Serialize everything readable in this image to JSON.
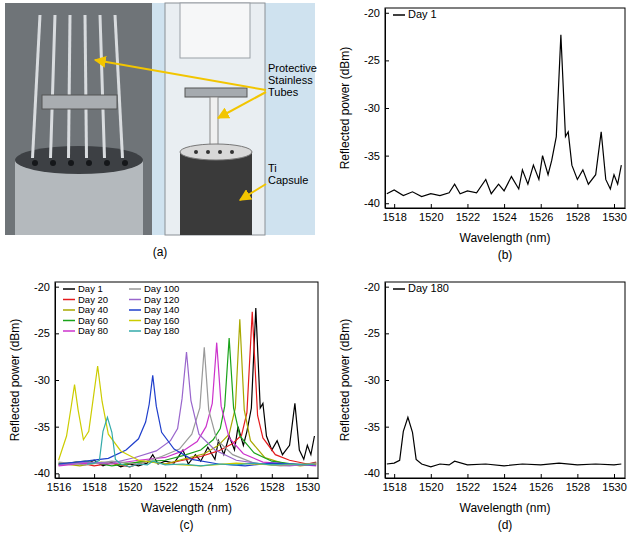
{
  "panel_a": {
    "caption": "(a)",
    "labels": [
      "Protective Stainless Tubes",
      "Ti Capsule"
    ]
  },
  "chart_data": [
    {
      "type": "line",
      "caption": "(b)",
      "x_label": "Wavelength (nm)",
      "y_label": "Reflected power (dBm)",
      "xlim": [
        1517.5,
        1530.6
      ],
      "ylim": [
        -40.5,
        -19.5
      ],
      "xticks": [
        1518,
        1520,
        1522,
        1524,
        1526,
        1528,
        1530
      ],
      "yticks": [
        -40,
        -35,
        -30,
        -25,
        -20
      ],
      "legend": "upper left",
      "series": [
        {
          "name": "Day 1",
          "color": "#000000",
          "x": [
            1517.6,
            1518.0,
            1518.5,
            1519.0,
            1519.5,
            1520.0,
            1520.5,
            1521.0,
            1521.3,
            1521.6,
            1522.0,
            1522.5,
            1523.0,
            1523.3,
            1523.7,
            1524.0,
            1524.4,
            1524.8,
            1525.0,
            1525.3,
            1525.6,
            1525.9,
            1526.1,
            1526.4,
            1526.6,
            1526.85,
            1527.1,
            1527.35,
            1527.5,
            1527.7,
            1528.0,
            1528.3,
            1528.6,
            1529.0,
            1529.3,
            1529.55,
            1529.8,
            1530.0,
            1530.2,
            1530.4
          ],
          "values": [
            -39.0,
            -38.6,
            -39.2,
            -38.8,
            -39.3,
            -39.0,
            -39.2,
            -38.9,
            -38.0,
            -39.0,
            -38.7,
            -38.9,
            -37.5,
            -39.0,
            -38.0,
            -38.7,
            -37.2,
            -38.5,
            -36.5,
            -38.0,
            -36.0,
            -37.5,
            -35.0,
            -37.0,
            -35.5,
            -33.0,
            -22.3,
            -33.0,
            -32.5,
            -36.0,
            -37.5,
            -36.5,
            -38.0,
            -37.0,
            -32.5,
            -37.5,
            -38.5,
            -37.0,
            -38.0,
            -36.0
          ]
        }
      ]
    },
    {
      "type": "line",
      "caption": "(c)",
      "x_label": "Wavelength (nm)",
      "y_label": "Reflected power (dBm)",
      "xlim": [
        1515.8,
        1530.6
      ],
      "ylim": [
        -40.5,
        -19.5
      ],
      "xticks": [
        1516,
        1518,
        1520,
        1522,
        1524,
        1526,
        1528,
        1530
      ],
      "yticks": [
        -40,
        -35,
        -30,
        -25,
        -20
      ],
      "legend": "upper left",
      "series": [
        {
          "name": "Day 1",
          "color": "#000000",
          "x": [
            1517.6,
            1518.0,
            1518.5,
            1519.0,
            1519.5,
            1520.0,
            1520.5,
            1521.0,
            1521.3,
            1521.6,
            1522.0,
            1522.5,
            1523.0,
            1523.3,
            1523.7,
            1524.0,
            1524.4,
            1524.8,
            1525.0,
            1525.3,
            1525.6,
            1525.9,
            1526.1,
            1526.4,
            1526.6,
            1526.85,
            1527.1,
            1527.35,
            1527.5,
            1527.7,
            1528.0,
            1528.3,
            1528.6,
            1529.0,
            1529.3,
            1529.55,
            1529.8,
            1530.0,
            1530.2,
            1530.4
          ],
          "values": [
            -39.0,
            -38.6,
            -39.2,
            -38.8,
            -39.3,
            -39.0,
            -39.2,
            -38.9,
            -38.0,
            -39.0,
            -38.7,
            -38.9,
            -37.5,
            -39.0,
            -38.0,
            -38.7,
            -37.2,
            -38.5,
            -36.5,
            -38.0,
            -36.0,
            -37.5,
            -35.0,
            -37.0,
            -35.5,
            -33.0,
            -22.3,
            -33.0,
            -32.5,
            -36.0,
            -37.5,
            -36.5,
            -38.0,
            -37.0,
            -32.5,
            -37.5,
            -38.5,
            -37.0,
            -38.0,
            -36.0
          ]
        },
        {
          "name": "Day 20",
          "color": "#e41a1c",
          "x": [
            1516.0,
            1517.0,
            1518.0,
            1519.0,
            1520.0,
            1521.0,
            1522.0,
            1523.0,
            1524.0,
            1525.0,
            1525.8,
            1526.3,
            1526.6,
            1526.9,
            1527.2,
            1527.5,
            1528.2,
            1529.0,
            1530.0,
            1530.5
          ],
          "values": [
            -39.1,
            -38.8,
            -39.2,
            -38.9,
            -39.3,
            -38.7,
            -39.0,
            -38.6,
            -38.2,
            -37.6,
            -36.8,
            -35.9,
            -33.5,
            -22.7,
            -33.8,
            -36.2,
            -38.0,
            -38.6,
            -39.0,
            -38.8
          ]
        },
        {
          "name": "Day 40",
          "color": "#a8a800",
          "x": [
            1516.0,
            1517.2,
            1518.4,
            1519.6,
            1520.8,
            1522.0,
            1523.2,
            1524.2,
            1525.0,
            1525.6,
            1525.95,
            1526.2,
            1526.45,
            1526.8,
            1527.6,
            1528.6,
            1529.6,
            1530.5
          ],
          "values": [
            -38.9,
            -39.2,
            -38.8,
            -39.1,
            -38.7,
            -39.0,
            -38.4,
            -37.9,
            -37.0,
            -35.8,
            -33.0,
            -23.5,
            -33.2,
            -36.5,
            -38.3,
            -38.9,
            -39.2,
            -39.0
          ]
        },
        {
          "name": "Day 60",
          "color": "#1aa31a",
          "x": [
            1516.0,
            1517.5,
            1519.0,
            1520.5,
            1522.0,
            1523.0,
            1524.0,
            1524.7,
            1525.1,
            1525.35,
            1525.6,
            1525.85,
            1526.2,
            1527.0,
            1528.0,
            1529.5,
            1530.5
          ],
          "values": [
            -39.0,
            -38.7,
            -39.2,
            -38.8,
            -38.6,
            -38.1,
            -37.5,
            -36.4,
            -35.2,
            -32.8,
            -25.5,
            -33.0,
            -36.0,
            -37.8,
            -38.7,
            -39.1,
            -38.9
          ]
        },
        {
          "name": "Day 80",
          "color": "#cc33cc",
          "x": [
            1516.0,
            1517.5,
            1519.0,
            1520.5,
            1522.0,
            1523.0,
            1523.8,
            1524.3,
            1524.65,
            1524.9,
            1525.15,
            1525.6,
            1526.4,
            1527.5,
            1529.0,
            1530.5
          ],
          "values": [
            -39.2,
            -38.9,
            -39.0,
            -38.6,
            -38.3,
            -37.6,
            -36.6,
            -35.0,
            -32.5,
            -26.0,
            -32.8,
            -36.2,
            -37.9,
            -38.8,
            -39.0,
            -39.2
          ]
        },
        {
          "name": "Day 100",
          "color": "#999999",
          "x": [
            1516.0,
            1517.5,
            1519.0,
            1520.5,
            1521.8,
            1522.8,
            1523.5,
            1523.95,
            1524.2,
            1524.45,
            1524.9,
            1525.8,
            1527.0,
            1528.5,
            1530.5
          ],
          "values": [
            -38.8,
            -39.1,
            -38.7,
            -39.0,
            -38.2,
            -37.4,
            -35.8,
            -33.0,
            -26.5,
            -33.2,
            -36.4,
            -38.0,
            -38.9,
            -39.2,
            -39.0
          ]
        },
        {
          "name": "Day 120",
          "color": "#9966cc",
          "x": [
            1516.0,
            1517.5,
            1519.0,
            1520.3,
            1521.5,
            1522.3,
            1522.7,
            1522.95,
            1523.2,
            1523.45,
            1523.9,
            1524.8,
            1526.0,
            1527.5,
            1529.0,
            1530.5
          ],
          "values": [
            -39.1,
            -38.8,
            -38.9,
            -38.3,
            -37.6,
            -36.5,
            -35.2,
            -32.0,
            -27.0,
            -32.2,
            -35.8,
            -37.5,
            -38.6,
            -39.0,
            -39.2,
            -38.9
          ]
        },
        {
          "name": "Day 140",
          "color": "#1f3fcc",
          "x": [
            1516.0,
            1517.5,
            1518.8,
            1519.8,
            1520.5,
            1520.9,
            1521.1,
            1521.3,
            1521.5,
            1521.8,
            1522.5,
            1523.5,
            1525.0,
            1526.5,
            1528.0,
            1530.5
          ],
          "values": [
            -39.0,
            -38.7,
            -38.4,
            -37.5,
            -36.3,
            -34.5,
            -32.6,
            -29.5,
            -32.8,
            -35.6,
            -37.4,
            -38.5,
            -39.0,
            -39.2,
            -38.9,
            -39.1
          ]
        },
        {
          "name": "Day 160",
          "color": "#cccc00",
          "x": [
            1516.0,
            1516.45,
            1516.7,
            1516.9,
            1517.1,
            1517.4,
            1517.7,
            1517.95,
            1518.2,
            1518.45,
            1518.8,
            1519.5,
            1520.5,
            1522.0,
            1524.0,
            1526.0,
            1528.0,
            1530.5
          ],
          "values": [
            -38.6,
            -36.0,
            -33.0,
            -30.5,
            -33.2,
            -36.4,
            -35.5,
            -32.0,
            -28.5,
            -32.3,
            -35.8,
            -37.6,
            -38.6,
            -39.0,
            -39.2,
            -38.9,
            -39.1,
            -39.0
          ]
        },
        {
          "name": "Day 180",
          "color": "#33aaaa",
          "x": [
            1517.6,
            1518.0,
            1518.3,
            1518.5,
            1518.75,
            1519.0,
            1519.2,
            1519.5,
            1520.0,
            1520.5,
            1521.0,
            1521.3,
            1522.0,
            1523.0,
            1524.0,
            1525.0,
            1526.0,
            1527.0,
            1528.0,
            1529.0,
            1530.0,
            1530.4
          ],
          "values": [
            -39.0,
            -38.9,
            -38.6,
            -35.5,
            -34.0,
            -35.6,
            -38.5,
            -39.0,
            -39.3,
            -39.0,
            -39.1,
            -38.7,
            -39.1,
            -39.0,
            -39.2,
            -39.0,
            -39.1,
            -38.9,
            -39.1,
            -39.0,
            -39.1,
            -39.0
          ]
        }
      ]
    },
    {
      "type": "line",
      "caption": "(d)",
      "x_label": "Wavelength (nm)",
      "y_label": "Reflected power (dBm)",
      "xlim": [
        1517.5,
        1530.6
      ],
      "ylim": [
        -40.5,
        -19.5
      ],
      "xticks": [
        1518,
        1520,
        1522,
        1524,
        1526,
        1528,
        1530
      ],
      "yticks": [
        -40,
        -35,
        -30,
        -25,
        -20
      ],
      "legend": "upper left",
      "series": [
        {
          "name": "Day 180",
          "color": "#000000",
          "x": [
            1517.6,
            1518.0,
            1518.3,
            1518.5,
            1518.75,
            1519.0,
            1519.2,
            1519.5,
            1520.0,
            1520.5,
            1521.0,
            1521.3,
            1522.0,
            1523.0,
            1524.0,
            1525.0,
            1526.0,
            1527.0,
            1528.0,
            1529.0,
            1530.0,
            1530.4
          ],
          "values": [
            -39.0,
            -38.9,
            -38.6,
            -35.5,
            -34.0,
            -35.6,
            -38.5,
            -39.0,
            -39.3,
            -39.0,
            -39.1,
            -38.7,
            -39.1,
            -39.0,
            -39.2,
            -39.0,
            -39.1,
            -38.9,
            -39.1,
            -39.0,
            -39.1,
            -39.0
          ]
        }
      ]
    }
  ]
}
